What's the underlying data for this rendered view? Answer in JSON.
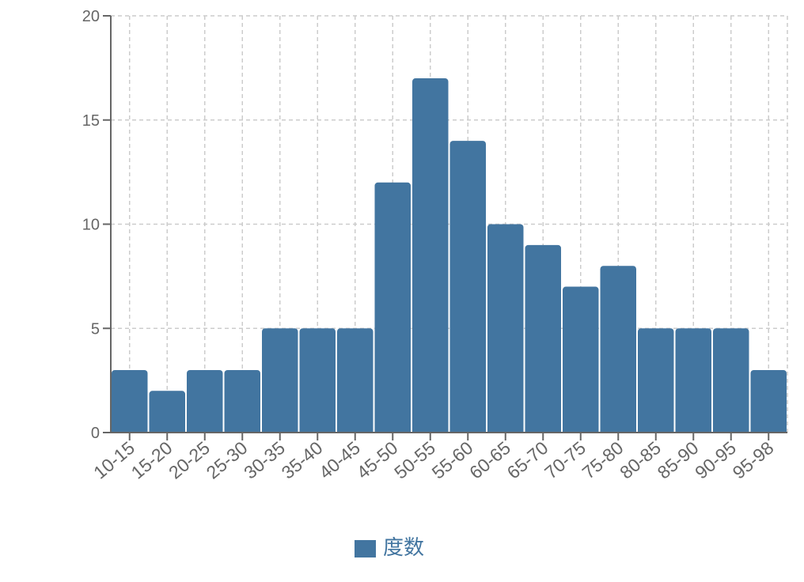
{
  "chart_data": {
    "type": "bar",
    "categories": [
      "10-15",
      "15-20",
      "20-25",
      "25-30",
      "30-35",
      "35-40",
      "40-45",
      "45-50",
      "50-55",
      "55-60",
      "60-65",
      "65-70",
      "70-75",
      "75-80",
      "80-85",
      "85-90",
      "90-95",
      "95-98"
    ],
    "series": [
      {
        "name": "度数",
        "values": [
          3,
          2,
          3,
          3,
          5,
          5,
          5,
          12,
          17,
          14,
          10,
          9,
          7,
          8,
          5,
          5,
          5,
          3
        ]
      }
    ],
    "title": "",
    "xlabel": "",
    "ylabel": "",
    "ylim": [
      0,
      20
    ],
    "yticks": [
      0,
      5,
      10,
      15,
      20
    ],
    "grid": true,
    "legend": "bottom",
    "colors": {
      "bar": "#4275a0",
      "axis": "#666666",
      "grid": "#cccccc"
    }
  }
}
